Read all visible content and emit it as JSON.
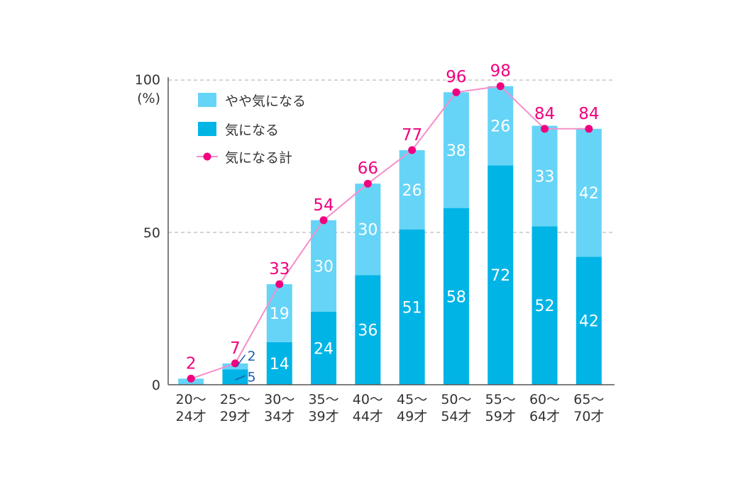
{
  "chart_data": {
    "type": "bar",
    "stacked": true,
    "categories": [
      "20〜\n24才",
      "25〜\n29才",
      "30〜\n34才",
      "35〜\n39才",
      "40〜\n44才",
      "45〜\n49才",
      "50〜\n54才",
      "55〜\n59才",
      "60〜\n64才",
      "65〜\n70才"
    ],
    "series": [
      {
        "name": "気になる",
        "values": [
          null,
          5,
          14,
          24,
          36,
          51,
          58,
          72,
          52,
          42
        ],
        "color": "#00b4e6"
      },
      {
        "name": "やや気になる",
        "values": [
          null,
          2,
          19,
          30,
          30,
          26,
          38,
          26,
          33,
          42
        ],
        "color": "#66d4f7"
      },
      {
        "name": "気になる計",
        "type": "line",
        "values": [
          2,
          7,
          33,
          54,
          66,
          77,
          96,
          98,
          84,
          84
        ],
        "color": "#f0007f"
      }
    ],
    "ylim": [
      0,
      100
    ],
    "yticks": [
      "0",
      "50",
      "100"
    ],
    "yunit": "(%)",
    "grid": "dashed at 50, 100",
    "legend_position": "top-left"
  },
  "colors": {
    "strong": "#00b4e6",
    "light": "#66d4f7",
    "line": "#f0007f",
    "axis": "#555555",
    "grid": "#bbbbbb",
    "callout": "#1e5fa8"
  }
}
